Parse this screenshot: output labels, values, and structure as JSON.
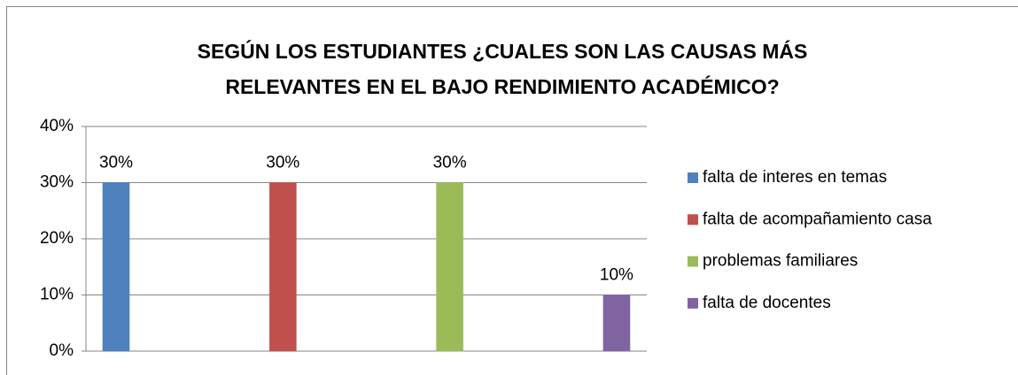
{
  "chart_data": {
    "type": "bar",
    "title": [
      "SEGÚN LOS ESTUDIANTES ¿CUALES SON LAS CAUSAS MÁS",
      "RELEVANTES EN EL BAJO RENDIMIENTO ACADÉMICO?"
    ],
    "series": [
      {
        "name": "falta de interes en temas",
        "color": "#4f81bd",
        "values": [
          30
        ],
        "value_labels": [
          "30%"
        ]
      },
      {
        "name": "falta de acompañamiento casa",
        "color": "#c0504d",
        "values": [
          30
        ],
        "value_labels": [
          "30%"
        ]
      },
      {
        "name": "problemas familiares",
        "color": "#9bbb59",
        "values": [
          30
        ],
        "value_labels": [
          "30%"
        ]
      },
      {
        "name": "falta de docentes",
        "color": "#8064a2",
        "values": [
          10
        ],
        "value_labels": [
          "10%"
        ]
      }
    ],
    "ylim": [
      0,
      40
    ],
    "yticks": [
      {
        "value": 0,
        "label": "0%"
      },
      {
        "value": 10,
        "label": "10%"
      },
      {
        "value": 20,
        "label": "20%"
      },
      {
        "value": 30,
        "label": "30%"
      },
      {
        "value": 40,
        "label": "40%"
      }
    ],
    "grid": true,
    "legend": "right"
  }
}
